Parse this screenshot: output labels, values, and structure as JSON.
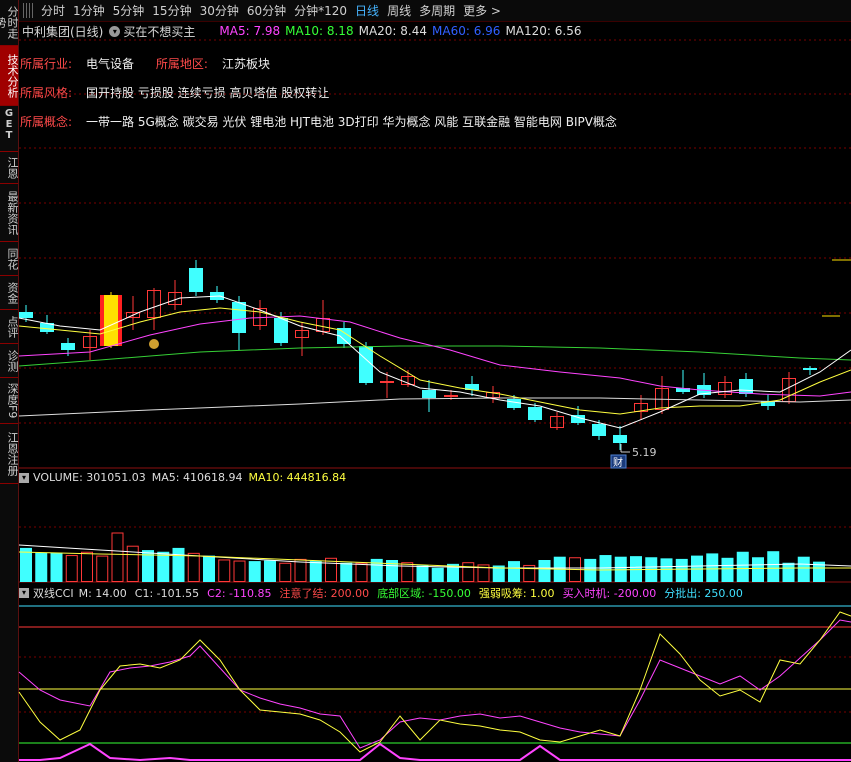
{
  "sidebar": {
    "items": [
      {
        "label": "分时走势",
        "h": 46
      },
      {
        "label": "技术分析",
        "h": 60,
        "active": true
      },
      {
        "label": "GET",
        "h": 46,
        "get": true
      },
      {
        "label": "江恩",
        "h": 32
      },
      {
        "label": "最新资讯",
        "h": 58
      },
      {
        "label": "同花",
        "h": 34
      },
      {
        "label": "资金",
        "h": 34
      },
      {
        "label": "点评",
        "h": 34
      },
      {
        "label": "诊测",
        "h": 34
      },
      {
        "label": "深度F9",
        "h": 46
      },
      {
        "label": "江恩注册",
        "h": 60
      }
    ]
  },
  "timeframes": [
    "分时",
    "1分钟",
    "5分钟",
    "15分钟",
    "30分钟",
    "60分钟",
    "分钟*120",
    "日线",
    "周线",
    "多周期",
    "更多 >"
  ],
  "active_timeframe": "日线",
  "title": {
    "stock": "中利集团(日线)",
    "dropdown_icon": "chevron-down-icon",
    "preset": "买在不想买主",
    "ma": [
      {
        "label": "MA5: 7.98",
        "color": "#ff44ff"
      },
      {
        "label": "MA10: 8.18",
        "color": "#36ff36"
      },
      {
        "label": "MA20: 8.44",
        "color": "#dddddd"
      },
      {
        "label": "MA60: 6.96",
        "color": "#3060ff"
      },
      {
        "label": "MA120: 6.56",
        "color": "#dddddd"
      }
    ]
  },
  "info": {
    "industry_k": "所属行业:",
    "industry_v": "电气设备",
    "region_k": "所属地区:",
    "region_v": "江苏板块",
    "style_k": "所属风格:",
    "style_v": "国开持股 亏损股 连续亏损 高贝塔值 股权转让",
    "concept_k": "所属概念:",
    "concept_v": "一带一路 5G概念 碳交易 光伏 锂电池 HJT电池 3D打印 华为概念 风能 互联金融 智能电网 BIPV概念"
  },
  "annotations": {
    "low_price": "5.19",
    "cai_badge": "财",
    "money_icon": "money-bag-icon"
  },
  "volume": {
    "label": "VOLUME: 301051.03",
    "ma5": "MA5: 410618.94",
    "ma10": "MA10: 444816.84",
    "ma10_color": "#ffff40",
    "bars": [
      0.62,
      0.53,
      0.53,
      0.49,
      0.55,
      0.48,
      0.9,
      0.66,
      0.58,
      0.55,
      0.62,
      0.53,
      0.48,
      0.41,
      0.39,
      0.38,
      0.39,
      0.35,
      0.42,
      0.38,
      0.44,
      0.35,
      0.35,
      0.42,
      0.4,
      0.36,
      0.3,
      0.26,
      0.33,
      0.36,
      0.32,
      0.3,
      0.38,
      0.31,
      0.4,
      0.46,
      0.45,
      0.42,
      0.49,
      0.46,
      0.47,
      0.45,
      0.43,
      0.42,
      0.48,
      0.52,
      0.44,
      0.55,
      0.45,
      0.56,
      0.35,
      0.46,
      0.37
    ]
  },
  "cci": {
    "name": "双线CCI",
    "items": [
      {
        "label": "M: 14.00",
        "color": "#dddddd"
      },
      {
        "label": "C1: -101.55",
        "color": "#dddddd"
      },
      {
        "label": "C2: -110.85",
        "color": "#ff44ff"
      },
      {
        "label": "注意了结: 200.00",
        "color": "#ff4a4a"
      },
      {
        "label": "底部区域: -150.00",
        "color": "#36ff36"
      },
      {
        "label": "强弱吸筹: 1.00",
        "color": "#ffff40"
      },
      {
        "label": "买入时机: -200.00",
        "color": "#ff44ff"
      },
      {
        "label": "分批出: 250.00",
        "color": "#40e0ff"
      }
    ]
  },
  "colors": {
    "up": "#ff3838",
    "down": "#40ffff",
    "grid": "#7a0000",
    "ma5": "#ffffff",
    "ma10": "#ffff40",
    "ma20": "#ff44ff",
    "ma60": "#36d036",
    "ma120": "#dddddd"
  }
}
